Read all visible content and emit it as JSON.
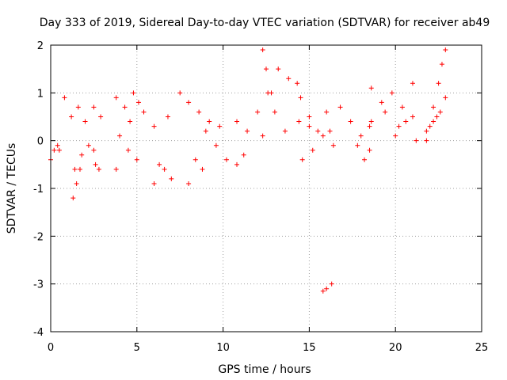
{
  "chart_data": {
    "type": "scatter",
    "title": "Day 333 of 2019, Sidereal Day-to-day VTEC variation (SDTVAR) for receiver ab49",
    "xlabel": "GPS time / hours",
    "ylabel": "SDTVAR / TECUs",
    "xlim": [
      0,
      25
    ],
    "ylim": [
      -4,
      2
    ],
    "x_ticks": [
      0,
      5,
      10,
      15,
      20,
      25
    ],
    "y_ticks": [
      -4,
      -3,
      -2,
      -1,
      0,
      1,
      2
    ],
    "grid": true,
    "marker": "plus",
    "color": "#ff0000",
    "series": [
      {
        "name": "SDTVAR",
        "segments": [
          {
            "x": [
              0.0,
              0.2,
              0.4,
              0.5
            ],
            "y": [
              -0.4,
              -0.2,
              -0.1,
              -0.2
            ]
          },
          {
            "x": [
              0.8,
              1.2,
              1.6,
              2.0,
              2.5,
              2.9
            ],
            "y": [
              0.9,
              0.5,
              0.7,
              0.4,
              0.7,
              0.5
            ]
          },
          {
            "x": [
              1.3,
              1.5,
              1.7
            ],
            "y": [
              -1.2,
              -0.9,
              -0.6
            ]
          },
          {
            "x": [
              1.4,
              1.8,
              2.2,
              2.5
            ],
            "y": [
              -0.6,
              -0.3,
              -0.1,
              -0.2
            ]
          },
          {
            "x": [
              2.6,
              2.8
            ],
            "y": [
              -0.5,
              -0.6
            ]
          },
          {
            "x": [
              3.8,
              4.3,
              4.8,
              5.1
            ],
            "y": [
              0.9,
              0.7,
              1.0,
              0.8
            ]
          },
          {
            "x": [
              3.8,
              4.5,
              5.0
            ],
            "y": [
              -0.6,
              -0.2,
              -0.4
            ]
          },
          {
            "x": [
              4.0,
              4.6,
              5.4,
              6.0,
              6.8
            ],
            "y": [
              0.1,
              0.4,
              0.6,
              0.3,
              0.5
            ]
          },
          {
            "x": [
              6.0,
              6.3,
              6.6,
              7.0
            ],
            "y": [
              -0.9,
              -0.5,
              -0.6,
              -0.8
            ]
          },
          {
            "x": [
              7.5,
              8.0,
              8.6,
              9.2,
              9.8
            ],
            "y": [
              1.0,
              0.8,
              0.6,
              0.4,
              0.3
            ]
          },
          {
            "x": [
              8.0,
              8.4,
              8.8
            ],
            "y": [
              -0.9,
              -0.4,
              -0.6
            ]
          },
          {
            "x": [
              9.0,
              9.6,
              10.2,
              10.8,
              11.2
            ],
            "y": [
              0.2,
              -0.1,
              -0.4,
              -0.5,
              -0.3
            ]
          },
          {
            "x": [
              10.8,
              11.4,
              12.0
            ],
            "y": [
              0.4,
              0.2,
              0.6
            ]
          },
          {
            "x": [
              12.3,
              12.5,
              12.8
            ],
            "y": [
              1.9,
              1.5,
              1.0
            ]
          },
          {
            "x": [
              12.6,
              13.2,
              13.8,
              14.3
            ],
            "y": [
              1.0,
              1.5,
              1.3,
              1.2
            ]
          },
          {
            "x": [
              12.3,
              13.0,
              13.6,
              14.4,
              15.0
            ],
            "y": [
              0.1,
              0.6,
              0.2,
              0.4,
              0.3
            ]
          },
          {
            "x": [
              14.5,
              15.0,
              15.5,
              16.0
            ],
            "y": [
              0.9,
              0.5,
              0.2,
              0.6
            ]
          },
          {
            "x": [
              14.6,
              15.2,
              15.8,
              16.4
            ],
            "y": [
              -0.4,
              -0.2,
              0.1,
              -0.1
            ]
          },
          {
            "x": [
              15.8,
              16.0,
              16.3
            ],
            "y": [
              -3.15,
              -3.1,
              -3.0
            ]
          },
          {
            "x": [
              16.2,
              16.8,
              17.4,
              18.0,
              18.5
            ],
            "y": [
              0.2,
              0.7,
              0.4,
              0.1,
              0.3
            ]
          },
          {
            "x": [
              17.8,
              18.2,
              18.5
            ],
            "y": [
              -0.1,
              -0.4,
              -0.2
            ]
          },
          {
            "x": [
              18.6,
              19.2,
              19.8,
              20.4,
              21.0
            ],
            "y": [
              1.1,
              0.8,
              1.0,
              0.7,
              1.2
            ]
          },
          {
            "x": [
              18.6,
              19.4,
              20.2,
              21.0,
              21.8
            ],
            "y": [
              0.4,
              0.6,
              0.3,
              0.5,
              0.2
            ]
          },
          {
            "x": [
              20.0,
              20.6,
              21.2,
              22.0,
              22.4
            ],
            "y": [
              0.1,
              0.4,
              0.0,
              0.3,
              0.5
            ]
          },
          {
            "x": [
              22.2,
              22.5,
              22.7,
              22.9
            ],
            "y": [
              0.7,
              1.2,
              1.6,
              1.9
            ]
          },
          {
            "x": [
              21.8,
              22.2,
              22.6,
              22.9
            ],
            "y": [
              0.0,
              0.4,
              0.6,
              0.9
            ]
          }
        ]
      }
    ]
  }
}
